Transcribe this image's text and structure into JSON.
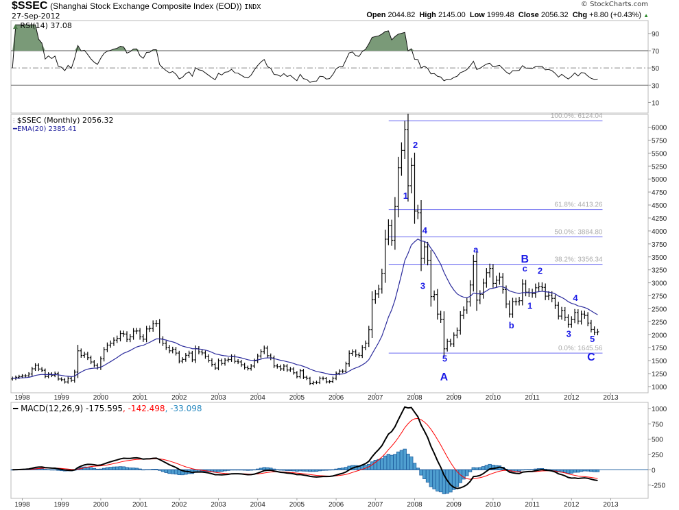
{
  "header": {
    "symbol": "$SSEC",
    "name": "(Shanghai Stock Exchange Composite Index (EOD))",
    "exchange": "INDX",
    "date": "27-Sep-2012",
    "copyright": "© StockCharts.com",
    "open_label": "Open",
    "open": "2044.82",
    "high_label": "High",
    "high": "2145.00",
    "low_label": "Low",
    "low": "1999.48",
    "close_label": "Close",
    "close": "2056.32",
    "chg_label": "Chg",
    "chg": "+8.80 (+0.43%)"
  },
  "legends": {
    "rsi": "RSI(14) 37.08",
    "price": "$SSEC (Monthly) 2056.32",
    "ema": "EMA(20) 2385.41",
    "macd_main": "MACD(12,26,9) -175.595",
    "macd_signal": ", -142.498",
    "macd_hist": ", -33.098"
  },
  "colors": {
    "bars": "#000000",
    "ema": "#2b2b9c",
    "fib": "#6a6af0",
    "wave_labels": "#1a1ae6",
    "rsi_fill": "#7a9a78",
    "macd_signal": "#ff0000",
    "macd_hist": "#4f9fd0",
    "macd_hist_stroke": "#1f5f9f"
  },
  "chart_data": {
    "type": "bar",
    "title": "$SSEC (Monthly)",
    "start_month": "1997-10",
    "frequency": "monthly",
    "close": [
      1160,
      1180,
      1194,
      1206,
      1207,
      1243,
      1343,
      1411,
      1339,
      1315,
      1194,
      1242,
      1218,
      1255,
      1147,
      1134,
      1090,
      1158,
      1120,
      1280,
      1690,
      1601,
      1627,
      1557,
      1475,
      1410,
      1367,
      1535,
      1714,
      1800,
      1837,
      1895,
      1929,
      2023,
      2013,
      1911,
      1961,
      2070,
      2073,
      1959,
      1914,
      2112,
      2120,
      2214,
      2218,
      1920,
      1834,
      1756,
      1690,
      1720,
      1646,
      1491,
      1524,
      1603,
      1646,
      1515,
      1732,
      1669,
      1649,
      1581,
      1507,
      1427,
      1357,
      1499,
      1446,
      1511,
      1521,
      1577,
      1487,
      1476,
      1421,
      1367,
      1348,
      1397,
      1497,
      1590,
      1675,
      1742,
      1595,
      1555,
      1399,
      1386,
      1342,
      1396,
      1320,
      1340,
      1266,
      1191,
      1306,
      1181,
      1159,
      1060,
      1080,
      1083,
      1162,
      1155,
      1092,
      1099,
      1161,
      1258,
      1299,
      1298,
      1440,
      1641,
      1672,
      1612,
      1601,
      1752,
      1837,
      2099,
      2675,
      2786,
      2881,
      3184,
      3841,
      4109,
      3820,
      4471,
      5218,
      5552,
      5955,
      4871,
      5262,
      4383,
      4348,
      3472,
      3693,
      3433,
      2736,
      2775,
      2397,
      2293,
      1729,
      1871,
      1821,
      1991,
      2082,
      2373,
      2477,
      2633,
      2959,
      3412,
      2667,
      2779,
      2996,
      3195,
      3277,
      2989,
      3051,
      3110,
      2871,
      2592,
      2398,
      2638,
      2638,
      2656,
      2979,
      2820,
      2808,
      2791,
      2905,
      2928,
      2911,
      2743,
      2762,
      2701,
      2568,
      2359,
      2468,
      2333,
      2199,
      2292,
      2428,
      2263,
      2397,
      2373,
      2225,
      2103,
      2047,
      2056
    ],
    "x_ticks": [
      "1998",
      "1999",
      "2000",
      "2001",
      "2002",
      "2003",
      "2004",
      "2005",
      "2006",
      "2007",
      "2008",
      "2009",
      "2010",
      "2011",
      "2012",
      "2013"
    ],
    "price_axis": {
      "range": [
        950,
        6250
      ],
      "ticks": [
        "1000",
        "1250",
        "1500",
        "1750",
        "2000",
        "2250",
        "2500",
        "2750",
        "3000",
        "3250",
        "3500",
        "3750",
        "4000",
        "4250",
        "4500",
        "4750",
        "5000",
        "5250",
        "5500",
        "5750",
        "6000"
      ]
    },
    "rsi_axis": {
      "range": [
        0,
        100
      ],
      "ticks": [
        "10",
        "30",
        "50",
        "70",
        "90"
      ],
      "overbought": 70,
      "oversold": 30
    },
    "macd_axis": {
      "range": [
        -430,
        1100
      ],
      "ticks": [
        "-250",
        "0",
        "250",
        "500",
        "750",
        "1000"
      ]
    },
    "ema_period": 20,
    "rsi_period": 14,
    "macd_params": [
      12,
      26,
      9
    ],
    "fib_levels": [
      {
        "label": "100.0%: 6124.04",
        "value": 6124.04
      },
      {
        "label": "61.8%: 4413.26",
        "value": 4413.26
      },
      {
        "label": "50.0%: 3884.80",
        "value": 3884.8
      },
      {
        "label": "38.2%: 3356.34",
        "value": 3356.34
      },
      {
        "label": "0.0%: 1645.56",
        "value": 1645.56
      }
    ],
    "fib_range_years": [
      2007.34,
      2012.79
    ],
    "wave_labels": [
      {
        "text": "1",
        "t": 2007.77,
        "p": 4620,
        "big": false
      },
      {
        "text": "2",
        "t": 2008.02,
        "p": 5600,
        "big": false
      },
      {
        "text": "3",
        "t": 2008.21,
        "p": 2880,
        "big": false
      },
      {
        "text": "4",
        "t": 2008.26,
        "p": 3950,
        "big": false
      },
      {
        "text": "5",
        "t": 2008.77,
        "p": 1480,
        "big": false
      },
      {
        "text": "A",
        "t": 2008.75,
        "p": 1240,
        "big": true
      },
      {
        "text": "a",
        "t": 2009.56,
        "p": 3580,
        "big": false
      },
      {
        "text": "b",
        "t": 2010.47,
        "p": 2120,
        "big": false
      },
      {
        "text": "c",
        "t": 2010.81,
        "p": 3220,
        "big": false
      },
      {
        "text": "B",
        "t": 2010.81,
        "p": 3510,
        "big": true
      },
      {
        "text": "1",
        "t": 2010.94,
        "p": 2500,
        "big": false
      },
      {
        "text": "2",
        "t": 2011.2,
        "p": 3170,
        "big": false
      },
      {
        "text": "3",
        "t": 2011.93,
        "p": 1960,
        "big": false
      },
      {
        "text": "4",
        "t": 2012.1,
        "p": 2650,
        "big": false
      },
      {
        "text": "5",
        "t": 2012.53,
        "p": 1860,
        "big": false
      },
      {
        "text": "C",
        "t": 2012.5,
        "p": 1620,
        "big": true
      }
    ]
  }
}
